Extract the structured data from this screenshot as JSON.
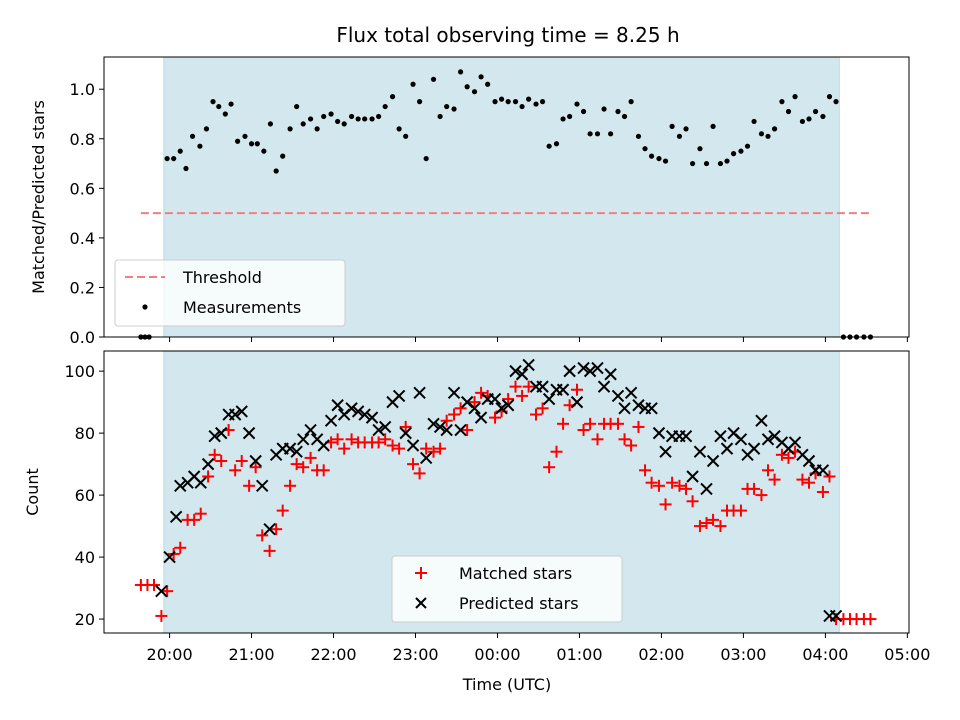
{
  "chart_data": [
    {
      "type": "scatter",
      "title": "Flux total observing time = 8.25 h",
      "xlabel": "",
      "ylabel": "Matched/Predicted stars",
      "x_unit": "hours (UTC, 20 = 20:00, 24 = 00:00)",
      "xlim": [
        19.2,
        29.02
      ],
      "ylim": [
        0.0,
        1.13
      ],
      "yticks": [
        "0.0",
        "0.2",
        "0.4",
        "0.6",
        "0.8",
        "1.0"
      ],
      "observing_window": [
        19.93,
        28.17
      ],
      "shade_color": "#d2e8ee",
      "legend_position": "lower-left",
      "threshold": {
        "name": "Threshold",
        "value": 0.5,
        "x_range": [
          19.65,
          28.55
        ],
        "color": "#f08080"
      },
      "series": [
        {
          "name": "Measurements",
          "color": "#000000",
          "x": [
            19.65,
            19.7,
            19.75,
            19.97,
            20.05,
            20.13,
            20.2,
            20.28,
            20.37,
            20.45,
            20.53,
            20.6,
            20.68,
            20.75,
            20.83,
            20.92,
            21.0,
            21.07,
            21.15,
            21.23,
            21.3,
            21.38,
            21.47,
            21.55,
            21.63,
            21.72,
            21.8,
            21.88,
            21.97,
            22.05,
            22.13,
            22.22,
            22.3,
            22.38,
            22.47,
            22.55,
            22.63,
            22.72,
            22.8,
            22.88,
            22.97,
            23.05,
            23.13,
            23.22,
            23.3,
            23.38,
            23.47,
            23.55,
            23.63,
            23.72,
            23.8,
            23.88,
            23.97,
            24.05,
            24.13,
            24.22,
            24.3,
            24.38,
            24.47,
            24.55,
            24.63,
            24.72,
            24.8,
            24.88,
            24.97,
            25.05,
            25.13,
            25.22,
            25.3,
            25.38,
            25.47,
            25.55,
            25.63,
            25.72,
            25.8,
            25.88,
            25.97,
            26.05,
            26.13,
            26.22,
            26.3,
            26.38,
            26.47,
            26.55,
            26.63,
            26.72,
            26.8,
            26.88,
            26.97,
            27.05,
            27.13,
            27.22,
            27.3,
            27.38,
            27.47,
            27.55,
            27.63,
            27.72,
            27.8,
            27.88,
            27.97,
            28.05,
            28.13,
            28.22,
            28.3,
            28.38,
            28.47,
            28.55
          ],
          "values": [
            0.0,
            0.0,
            0.0,
            0.72,
            0.72,
            0.75,
            0.68,
            0.81,
            0.77,
            0.84,
            0.95,
            0.93,
            0.9,
            0.94,
            0.79,
            0.81,
            0.78,
            0.78,
            0.75,
            0.86,
            0.67,
            0.73,
            0.84,
            0.93,
            0.86,
            0.88,
            0.84,
            0.89,
            0.9,
            0.87,
            0.86,
            0.89,
            0.88,
            0.88,
            0.88,
            0.89,
            0.93,
            0.97,
            0.84,
            0.81,
            1.02,
            0.95,
            0.72,
            1.04,
            0.89,
            0.93,
            0.92,
            1.07,
            1.01,
            0.99,
            1.05,
            1.02,
            0.95,
            0.96,
            0.95,
            0.95,
            0.93,
            0.96,
            0.94,
            0.95,
            0.77,
            0.78,
            0.88,
            0.89,
            0.94,
            0.91,
            0.82,
            0.82,
            0.92,
            0.82,
            0.91,
            0.89,
            0.95,
            0.81,
            0.76,
            0.73,
            0.72,
            0.71,
            0.85,
            0.81,
            0.84,
            0.7,
            0.76,
            0.7,
            0.85,
            0.7,
            0.71,
            0.74,
            0.75,
            0.77,
            0.87,
            0.82,
            0.81,
            0.84,
            0.95,
            0.91,
            0.97,
            0.87,
            0.88,
            0.91,
            0.89,
            0.97,
            0.95,
            0.0,
            0.0,
            0.0,
            0.0,
            0.0
          ]
        }
      ]
    },
    {
      "type": "scatter",
      "title": "",
      "xlabel": "Time (UTC)",
      "ylabel": "Count",
      "x_unit": "hours (UTC, 20 = 20:00, 24 = 00:00)",
      "xlim": [
        19.2,
        29.02
      ],
      "ylim": [
        15.5,
        106.5
      ],
      "yticks": [
        "20",
        "40",
        "60",
        "80",
        "100"
      ],
      "xticks": [
        "20:00",
        "21:00",
        "22:00",
        "23:00",
        "00:00",
        "01:00",
        "02:00",
        "03:00",
        "04:00",
        "05:00"
      ],
      "observing_window": [
        19.93,
        28.17
      ],
      "shade_color": "#d2e8ee",
      "legend_position": "lower-center",
      "series": [
        {
          "name": "Matched stars",
          "marker": "plus",
          "color": "#ff0000",
          "x": [
            19.65,
            19.73,
            19.81,
            19.9,
            19.97,
            20.05,
            20.13,
            20.22,
            20.3,
            20.38,
            20.47,
            20.55,
            20.63,
            20.72,
            20.8,
            20.88,
            20.97,
            21.05,
            21.13,
            21.22,
            21.3,
            21.38,
            21.47,
            21.55,
            21.63,
            21.72,
            21.8,
            21.88,
            21.97,
            22.05,
            22.13,
            22.22,
            22.3,
            22.38,
            22.47,
            22.55,
            22.63,
            22.72,
            22.8,
            22.88,
            22.97,
            23.05,
            23.13,
            23.22,
            23.3,
            23.38,
            23.47,
            23.55,
            23.63,
            23.72,
            23.8,
            23.88,
            23.97,
            24.05,
            24.13,
            24.22,
            24.3,
            24.38,
            24.47,
            24.55,
            24.63,
            24.72,
            24.8,
            24.88,
            24.97,
            25.05,
            25.13,
            25.22,
            25.3,
            25.38,
            25.47,
            25.55,
            25.63,
            25.72,
            25.8,
            25.88,
            25.97,
            26.05,
            26.13,
            26.22,
            26.3,
            26.38,
            26.47,
            26.55,
            26.63,
            26.72,
            26.8,
            26.88,
            26.97,
            27.05,
            27.13,
            27.22,
            27.3,
            27.38,
            27.47,
            27.55,
            27.63,
            27.72,
            27.8,
            27.88,
            27.97,
            28.05,
            28.13,
            28.22,
            28.3,
            28.38,
            28.47,
            28.55
          ],
          "values": [
            31,
            31,
            31,
            21,
            29,
            41,
            43,
            52,
            52,
            54,
            66,
            73,
            71,
            81,
            68,
            71,
            63,
            69,
            47,
            42,
            49,
            55,
            63,
            70,
            69,
            72,
            68,
            68,
            77,
            78,
            75,
            78,
            77,
            77,
            77,
            77,
            78,
            76,
            75,
            82,
            70,
            67,
            75,
            74,
            75,
            84,
            86,
            88,
            81,
            90,
            93,
            92,
            85,
            87,
            91,
            95,
            92,
            95,
            86,
            88,
            69,
            74,
            83,
            89,
            94,
            81,
            83,
            78,
            83,
            83,
            83,
            78,
            76,
            82,
            68,
            64,
            63,
            57,
            64,
            63,
            62,
            58,
            50,
            51,
            52,
            50,
            55,
            55,
            55,
            62,
            62,
            60,
            68,
            65,
            73,
            72,
            74,
            65,
            64,
            67,
            61,
            66,
            20,
            20,
            20,
            20,
            20,
            20
          ]
        },
        {
          "name": "Predicted stars",
          "marker": "x",
          "color": "#000000",
          "x": [
            19.9,
            20.0,
            20.08,
            20.13,
            20.22,
            20.3,
            20.38,
            20.47,
            20.55,
            20.63,
            20.72,
            20.8,
            20.88,
            20.97,
            21.05,
            21.13,
            21.22,
            21.3,
            21.38,
            21.47,
            21.55,
            21.63,
            21.72,
            21.8,
            21.88,
            21.97,
            22.05,
            22.13,
            22.22,
            22.3,
            22.38,
            22.47,
            22.55,
            22.63,
            22.72,
            22.8,
            22.88,
            22.97,
            23.05,
            23.13,
            23.22,
            23.3,
            23.38,
            23.47,
            23.55,
            23.63,
            23.72,
            23.8,
            23.88,
            23.97,
            24.05,
            24.13,
            24.22,
            24.3,
            24.38,
            24.47,
            24.55,
            24.63,
            24.72,
            24.8,
            24.88,
            24.97,
            25.05,
            25.13,
            25.22,
            25.3,
            25.38,
            25.47,
            25.55,
            25.63,
            25.72,
            25.8,
            25.88,
            25.97,
            26.05,
            26.13,
            26.22,
            26.3,
            26.38,
            26.47,
            26.55,
            26.63,
            26.72,
            26.8,
            26.88,
            26.97,
            27.05,
            27.13,
            27.22,
            27.3,
            27.38,
            27.47,
            27.55,
            27.63,
            27.72,
            27.8,
            27.88,
            27.97,
            28.05,
            28.13
          ],
          "values": [
            29,
            40,
            53,
            63,
            64,
            66,
            64,
            70,
            79,
            80,
            86,
            86,
            87,
            80,
            71,
            63,
            49,
            73,
            75,
            75,
            74,
            78,
            81,
            78,
            76,
            84,
            89,
            86,
            88,
            87,
            86,
            85,
            81,
            82,
            90,
            92,
            80,
            76,
            93,
            72,
            83,
            82,
            81,
            93,
            81,
            90,
            88,
            85,
            91,
            91,
            88,
            89,
            100,
            99,
            102,
            95,
            95,
            91,
            94,
            94,
            100,
            90,
            101,
            100,
            101,
            95,
            99,
            92,
            88,
            93,
            89,
            88,
            88,
            80,
            74,
            79,
            79,
            79,
            66,
            74,
            62,
            71,
            79,
            75,
            80,
            78,
            73,
            75,
            84,
            78,
            79,
            77,
            75,
            77,
            73,
            71,
            68,
            68,
            21,
            21
          ]
        }
      ]
    }
  ]
}
